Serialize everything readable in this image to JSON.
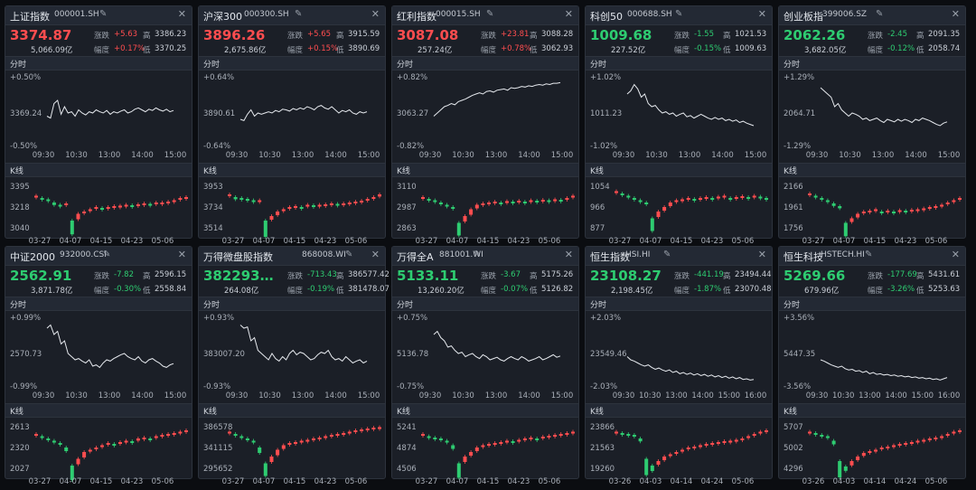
{
  "labels": {
    "change": "涨跌",
    "ratio": "幅度",
    "high": "高",
    "low": "低",
    "intraday": "分时",
    "kline": "K线",
    "close": "✕",
    "edit": "edit-icon"
  },
  "colors": {
    "up": "#ff4d4f",
    "down": "#2ecc71",
    "line": "#e6e9ee",
    "bg": "#1b1f27"
  },
  "cards": [
    {
      "name": "上证指数",
      "code": "000001.SH",
      "price": "3374.87",
      "dir": "up",
      "chg": "+5.63",
      "amount": "5,066.09亿",
      "pct": "+0.17%",
      "high": "3386.23",
      "low": "3370.25",
      "intraday": {
        "top": "+0.50%",
        "mid": "3369.24",
        "bot": "-0.50%",
        "times": [
          "09:30",
          "10:30",
          "13:00",
          "14:00",
          "15:00"
        ],
        "points": [
          0.55,
          0.58,
          0.35,
          0.3,
          0.52,
          0.4,
          0.5,
          0.48,
          0.55,
          0.45,
          0.5,
          0.53,
          0.48,
          0.5,
          0.45,
          0.48,
          0.5,
          0.46,
          0.52,
          0.48,
          0.5,
          0.47,
          0.45,
          0.5,
          0.48,
          0.44,
          0.42,
          0.45,
          0.48,
          0.44,
          0.46,
          0.42,
          0.45,
          0.47,
          0.44,
          0.48,
          0.46
        ]
      },
      "kline": {
        "top": "3395",
        "mid": "3218",
        "bot": "3040",
        "dates": [
          "03-27",
          "04-07",
          "04-15",
          "04-23",
          "05-06"
        ],
        "closes": [
          0.25,
          0.3,
          0.33,
          0.4,
          0.45,
          0.42,
          0.8,
          0.65,
          0.6,
          0.55,
          0.5,
          0.52,
          0.5,
          0.48,
          0.47,
          0.45,
          0.46,
          0.44,
          0.42,
          0.43,
          0.4,
          0.4,
          0.38,
          0.35,
          0.3,
          0.28
        ]
      }
    },
    {
      "name": "沪深300",
      "code": "000300.SH",
      "price": "3896.26",
      "dir": "up",
      "chg": "+5.65",
      "amount": "2,675.86亿",
      "pct": "+0.15%",
      "high": "3915.59",
      "low": "3890.69",
      "intraday": {
        "top": "+0.64%",
        "mid": "3890.61",
        "bot": "-0.64%",
        "times": [
          "09:30",
          "10:30",
          "13:00",
          "14:00",
          "15:00"
        ],
        "points": [
          0.6,
          0.62,
          0.52,
          0.45,
          0.55,
          0.5,
          0.52,
          0.5,
          0.48,
          0.5,
          0.46,
          0.48,
          0.44,
          0.45,
          0.47,
          0.43,
          0.45,
          0.42,
          0.44,
          0.4,
          0.42,
          0.45,
          0.4,
          0.38,
          0.42,
          0.44,
          0.4,
          0.45,
          0.5,
          0.46,
          0.48,
          0.45,
          0.5,
          0.52,
          0.48,
          0.5,
          0.48
        ]
      },
      "kline": {
        "top": "3953",
        "mid": "3734",
        "bot": "3514",
        "dates": [
          "03-27",
          "04-07",
          "04-15",
          "04-23",
          "05-06"
        ],
        "closes": [
          0.22,
          0.28,
          0.3,
          0.32,
          0.35,
          0.35,
          0.8,
          0.7,
          0.6,
          0.55,
          0.5,
          0.48,
          0.5,
          0.45,
          0.46,
          0.45,
          0.44,
          0.42,
          0.43,
          0.42,
          0.4,
          0.38,
          0.36,
          0.32,
          0.28,
          0.22
        ]
      }
    },
    {
      "name": "红利指数",
      "code": "000015.SH",
      "price": "3087.08",
      "dir": "up",
      "chg": "+23.81",
      "amount": "257.24亿",
      "pct": "+0.78%",
      "high": "3088.28",
      "low": "3062.93",
      "intraday": {
        "top": "+0.82%",
        "mid": "3063.27",
        "bot": "-0.82%",
        "times": [
          "09:30",
          "10:30",
          "13:00",
          "14:00",
          "15:00"
        ],
        "points": [
          0.55,
          0.5,
          0.45,
          0.4,
          0.38,
          0.35,
          0.37,
          0.32,
          0.3,
          0.28,
          0.25,
          0.22,
          0.2,
          0.18,
          0.2,
          0.16,
          0.15,
          0.17,
          0.14,
          0.13,
          0.12,
          0.14,
          0.1,
          0.11,
          0.1,
          0.08,
          0.09,
          0.07,
          0.08,
          0.06,
          0.05,
          0.06,
          0.04,
          0.05,
          0.03,
          0.03,
          0.02
        ]
      },
      "kline": {
        "top": "3110",
        "mid": "2987",
        "bot": "2863",
        "dates": [
          "03-27",
          "04-07",
          "04-15",
          "04-23",
          "05-06"
        ],
        "closes": [
          0.28,
          0.32,
          0.35,
          0.4,
          0.45,
          0.5,
          0.85,
          0.7,
          0.55,
          0.45,
          0.42,
          0.4,
          0.38,
          0.4,
          0.37,
          0.38,
          0.36,
          0.38,
          0.35,
          0.36,
          0.34,
          0.35,
          0.33,
          0.34,
          0.3,
          0.25
        ]
      }
    },
    {
      "name": "科创50",
      "code": "000688.SH",
      "price": "1009.68",
      "dir": "dn",
      "chg": "-1.55",
      "amount": "227.52亿",
      "pct": "-0.15%",
      "high": "1021.53",
      "low": "1009.63",
      "intraday": {
        "top": "+1.02%",
        "mid": "1011.23",
        "bot": "-1.02%",
        "times": [
          "09:30",
          "10:30",
          "13:00",
          "14:00",
          "15:00"
        ],
        "points": [
          0.2,
          0.15,
          0.05,
          0.12,
          0.25,
          0.2,
          0.35,
          0.4,
          0.38,
          0.45,
          0.5,
          0.48,
          0.52,
          0.5,
          0.55,
          0.52,
          0.5,
          0.56,
          0.54,
          0.58,
          0.55,
          0.52,
          0.55,
          0.58,
          0.6,
          0.57,
          0.6,
          0.58,
          0.62,
          0.6,
          0.63,
          0.61,
          0.65,
          0.63,
          0.66,
          0.68,
          0.7
        ]
      },
      "kline": {
        "top": "1054",
        "mid": "966",
        "bot": "877",
        "dates": [
          "03-27",
          "04-07",
          "04-15",
          "04-23",
          "05-06"
        ],
        "closes": [
          0.15,
          0.2,
          0.25,
          0.3,
          0.35,
          0.4,
          0.75,
          0.6,
          0.5,
          0.4,
          0.35,
          0.33,
          0.3,
          0.32,
          0.3,
          0.28,
          0.3,
          0.27,
          0.25,
          0.3,
          0.28,
          0.26,
          0.28,
          0.25,
          0.27,
          0.3
        ]
      }
    },
    {
      "name": "创业板指",
      "code": "399006.SZ",
      "price": "2062.26",
      "dir": "dn",
      "chg": "-2.45",
      "amount": "3,682.05亿",
      "pct": "-0.12%",
      "high": "2091.35",
      "low": "2058.74",
      "intraday": {
        "top": "+1.29%",
        "mid": "2064.71",
        "bot": "-1.29%",
        "times": [
          "09:30",
          "10:30",
          "13:00",
          "14:00",
          "15:00"
        ],
        "points": [
          0.1,
          0.15,
          0.2,
          0.25,
          0.4,
          0.35,
          0.45,
          0.5,
          0.55,
          0.5,
          0.52,
          0.55,
          0.6,
          0.58,
          0.62,
          0.6,
          0.58,
          0.62,
          0.65,
          0.6,
          0.62,
          0.64,
          0.6,
          0.63,
          0.6,
          0.62,
          0.65,
          0.6,
          0.62,
          0.58,
          0.6,
          0.62,
          0.65,
          0.68,
          0.7,
          0.66,
          0.64
        ]
      },
      "kline": {
        "top": "2166",
        "mid": "1961",
        "bot": "1756",
        "dates": [
          "03-27",
          "04-07",
          "04-15",
          "04-23",
          "05-06"
        ],
        "closes": [
          0.2,
          0.25,
          0.3,
          0.35,
          0.42,
          0.48,
          0.85,
          0.75,
          0.65,
          0.6,
          0.58,
          0.55,
          0.6,
          0.58,
          0.6,
          0.57,
          0.58,
          0.56,
          0.55,
          0.53,
          0.5,
          0.48,
          0.45,
          0.4,
          0.35,
          0.3
        ]
      }
    },
    {
      "name": "中证2000",
      "code": "932000.CSI",
      "price": "2562.91",
      "dir": "dn",
      "chg": "-7.82",
      "amount": "3,871.78亿",
      "pct": "-0.30%",
      "high": "2596.15",
      "low": "2558.84",
      "intraday": {
        "top": "+0.99%",
        "mid": "2570.73",
        "bot": "-0.99%",
        "times": [
          "09:30",
          "10:30",
          "13:00",
          "14:00",
          "15:00"
        ],
        "points": [
          0.1,
          0.05,
          0.2,
          0.15,
          0.35,
          0.3,
          0.5,
          0.55,
          0.6,
          0.58,
          0.62,
          0.65,
          0.6,
          0.7,
          0.68,
          0.72,
          0.65,
          0.6,
          0.62,
          0.58,
          0.55,
          0.52,
          0.5,
          0.55,
          0.58,
          0.6,
          0.55,
          0.62,
          0.65,
          0.6,
          0.58,
          0.62,
          0.65,
          0.7,
          0.72,
          0.68,
          0.66
        ]
      },
      "kline": {
        "top": "2613",
        "mid": "2320",
        "bot": "2027",
        "dates": [
          "03-27",
          "04-07",
          "04-15",
          "04-23",
          "05-06"
        ],
        "closes": [
          0.2,
          0.25,
          0.3,
          0.35,
          0.4,
          0.5,
          0.9,
          0.75,
          0.6,
          0.55,
          0.5,
          0.45,
          0.4,
          0.42,
          0.38,
          0.35,
          0.36,
          0.3,
          0.28,
          0.3,
          0.25,
          0.22,
          0.2,
          0.18,
          0.15,
          0.12
        ]
      }
    },
    {
      "name": "万得微盘股指数",
      "code": "868008.WI",
      "price": "382293…",
      "dir": "dn",
      "chg": "-713.43",
      "amount": "264.08亿",
      "pct": "-0.19%",
      "high": "386577.42",
      "low": "381478.07",
      "intraday": {
        "top": "+0.93%",
        "mid": "383007.20",
        "bot": "-0.93%",
        "times": [
          "09:30",
          "10:30",
          "13:00",
          "14:00",
          "15:00"
        ],
        "points": [
          0.05,
          0.1,
          0.08,
          0.3,
          0.25,
          0.45,
          0.5,
          0.55,
          0.6,
          0.5,
          0.58,
          0.62,
          0.55,
          0.6,
          0.5,
          0.45,
          0.52,
          0.48,
          0.5,
          0.55,
          0.6,
          0.58,
          0.52,
          0.48,
          0.5,
          0.45,
          0.55,
          0.6,
          0.58,
          0.62,
          0.55,
          0.6,
          0.65,
          0.62,
          0.6,
          0.65,
          0.62
        ]
      },
      "kline": {
        "top": "386578",
        "mid": "341115",
        "bot": "295652",
        "dates": [
          "03-27",
          "04-07",
          "04-15",
          "04-23",
          "05-06"
        ],
        "closes": [
          0.15,
          0.2,
          0.25,
          0.3,
          0.35,
          0.5,
          0.85,
          0.7,
          0.55,
          0.45,
          0.4,
          0.38,
          0.35,
          0.33,
          0.3,
          0.28,
          0.25,
          0.22,
          0.2,
          0.18,
          0.15,
          0.12,
          0.1,
          0.08,
          0.06,
          0.05
        ]
      }
    },
    {
      "name": "万得全A",
      "code": "881001.WI",
      "price": "5133.11",
      "dir": "dn",
      "chg": "-3.67",
      "amount": "13,260.20亿",
      "pct": "-0.07%",
      "high": "5175.26",
      "low": "5126.82",
      "intraday": {
        "top": "+0.75%",
        "mid": "5136.78",
        "bot": "-0.75%",
        "times": [
          "09:30",
          "10:30",
          "13:00",
          "14:00",
          "15:00"
        ],
        "points": [
          0.2,
          0.15,
          0.25,
          0.3,
          0.4,
          0.38,
          0.45,
          0.5,
          0.48,
          0.55,
          0.52,
          0.5,
          0.55,
          0.58,
          0.52,
          0.55,
          0.6,
          0.58,
          0.56,
          0.6,
          0.62,
          0.58,
          0.55,
          0.58,
          0.6,
          0.55,
          0.58,
          0.62,
          0.6,
          0.58,
          0.55,
          0.6,
          0.58,
          0.55,
          0.52,
          0.56,
          0.54
        ]
      },
      "kline": {
        "top": "5241",
        "mid": "4874",
        "bot": "4506",
        "dates": [
          "03-27",
          "04-07",
          "04-15",
          "04-23",
          "05-06"
        ],
        "closes": [
          0.2,
          0.25,
          0.28,
          0.3,
          0.35,
          0.45,
          0.85,
          0.7,
          0.6,
          0.5,
          0.45,
          0.42,
          0.4,
          0.38,
          0.35,
          0.36,
          0.33,
          0.3,
          0.28,
          0.3,
          0.26,
          0.24,
          0.22,
          0.2,
          0.18,
          0.15
        ]
      }
    },
    {
      "name": "恒生指数",
      "code": "HSI.HI",
      "price": "23108.27",
      "dir": "dn",
      "chg": "-441.19",
      "amount": "2,198.45亿",
      "pct": "-1.87%",
      "high": "23494.44",
      "low": "23070.48",
      "intraday": {
        "top": "+2.03%",
        "mid": "23549.46",
        "bot": "-2.03%",
        "times": [
          "09:30",
          "10:30",
          "13:00",
          "14:00",
          "15:00",
          "16:00"
        ],
        "points": [
          0.55,
          0.6,
          0.62,
          0.65,
          0.68,
          0.7,
          0.68,
          0.72,
          0.75,
          0.73,
          0.76,
          0.78,
          0.76,
          0.8,
          0.78,
          0.82,
          0.8,
          0.83,
          0.81,
          0.84,
          0.82,
          0.85,
          0.83,
          0.86,
          0.84,
          0.87,
          0.85,
          0.88,
          0.86,
          0.89,
          0.87,
          0.9,
          0.88,
          0.91,
          0.9,
          0.92,
          0.91
        ]
      },
      "kline": {
        "top": "23866",
        "mid": "21563",
        "bot": "19260",
        "dates": [
          "03-26",
          "04-03",
          "04-14",
          "04-24",
          "05-06"
        ],
        "closes": [
          0.15,
          0.18,
          0.2,
          0.22,
          0.3,
          0.75,
          0.9,
          0.8,
          0.7,
          0.65,
          0.6,
          0.55,
          0.5,
          0.48,
          0.45,
          0.42,
          0.4,
          0.38,
          0.36,
          0.35,
          0.33,
          0.3,
          0.25,
          0.2,
          0.15,
          0.12
        ]
      }
    },
    {
      "name": "恒生科技",
      "code": "HSTECH.HI",
      "price": "5269.66",
      "dir": "dn",
      "chg": "-177.69",
      "amount": "679.96亿",
      "pct": "-3.26%",
      "high": "5431.61",
      "low": "5253.63",
      "intraday": {
        "top": "+3.56%",
        "mid": "5447.35",
        "bot": "-3.56%",
        "times": [
          "09:30",
          "10:30",
          "13:00",
          "14:00",
          "15:00",
          "16:00"
        ],
        "points": [
          0.6,
          0.62,
          0.65,
          0.68,
          0.7,
          0.72,
          0.7,
          0.74,
          0.76,
          0.75,
          0.78,
          0.77,
          0.8,
          0.78,
          0.82,
          0.8,
          0.83,
          0.82,
          0.84,
          0.83,
          0.85,
          0.84,
          0.86,
          0.85,
          0.87,
          0.86,
          0.88,
          0.87,
          0.89,
          0.88,
          0.9,
          0.89,
          0.91,
          0.9,
          0.92,
          0.9,
          0.88
        ]
      },
      "kline": {
        "top": "5707",
        "mid": "5002",
        "bot": "4296",
        "dates": [
          "03-26",
          "04-03",
          "04-14",
          "04-24",
          "05-06"
        ],
        "closes": [
          0.15,
          0.18,
          0.22,
          0.25,
          0.35,
          0.8,
          0.92,
          0.8,
          0.7,
          0.62,
          0.58,
          0.55,
          0.5,
          0.48,
          0.45,
          0.42,
          0.4,
          0.38,
          0.35,
          0.33,
          0.3,
          0.28,
          0.25,
          0.2,
          0.15,
          0.12
        ]
      }
    }
  ]
}
